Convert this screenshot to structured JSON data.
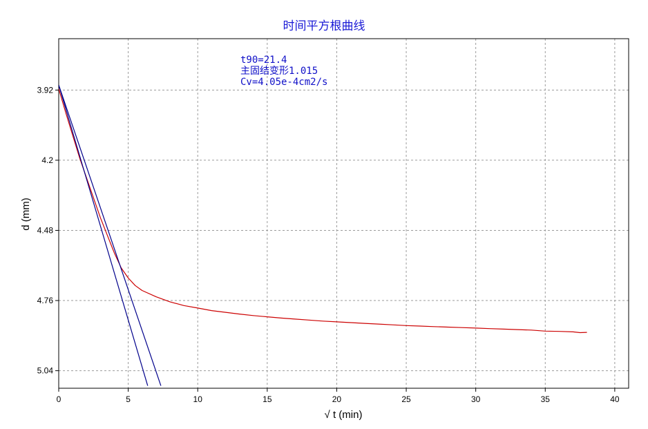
{
  "chart_data": {
    "type": "line",
    "title": "时间平方根曲线",
    "xlabel": "√ t (min)",
    "ylabel": "d (mm)",
    "xlim": [
      0,
      41
    ],
    "ylim": [
      3.715,
      5.11
    ],
    "y_inverted": true,
    "grid": true,
    "x_ticks": [
      0,
      5,
      10,
      15,
      20,
      25,
      30,
      35,
      40
    ],
    "y_ticks": [
      3.92,
      4.2,
      4.48,
      4.76,
      5.04
    ],
    "y_tick_labels": [
      "3.92",
      "4.2",
      "4.48",
      "4.76",
      "5.04"
    ],
    "annotations": [
      "t90=21.4",
      "主固结变形1.015",
      "Cv=4.05e-4cm2/s"
    ],
    "colors": {
      "curve": "#cc0000",
      "tangent": "#00008b",
      "title": "#1a1ad6",
      "annotation": "#1010c8"
    },
    "series": [
      {
        "role": "measured",
        "x": [
          0,
          0.5,
          1,
          1.5,
          2,
          2.5,
          3,
          3.5,
          4,
          4.5,
          5,
          5.5,
          6,
          7,
          8,
          9,
          10,
          11,
          12,
          13,
          14,
          15,
          16,
          17,
          18,
          19,
          20,
          21,
          22,
          23,
          24,
          25,
          26,
          27,
          28,
          29,
          30,
          31,
          32,
          33,
          34,
          35,
          36,
          37,
          37.5,
          38
        ],
        "y": [
          3.915,
          4.01,
          4.1,
          4.19,
          4.27,
          4.35,
          4.43,
          4.5,
          4.57,
          4.63,
          4.67,
          4.7,
          4.72,
          4.745,
          4.765,
          4.78,
          4.79,
          4.8,
          4.807,
          4.814,
          4.82,
          4.825,
          4.83,
          4.834,
          4.838,
          4.842,
          4.845,
          4.848,
          4.851,
          4.854,
          4.857,
          4.86,
          4.862,
          4.864,
          4.866,
          4.868,
          4.87,
          4.872,
          4.874,
          4.876,
          4.878,
          4.882,
          4.883,
          4.885,
          4.888,
          4.887
        ]
      },
      {
        "role": "tangent-1",
        "x": [
          0,
          6.4
        ],
        "y": [
          3.9,
          5.1
        ]
      },
      {
        "role": "tangent-2",
        "x": [
          0,
          7.35
        ],
        "y": [
          3.9,
          5.1
        ]
      }
    ]
  }
}
